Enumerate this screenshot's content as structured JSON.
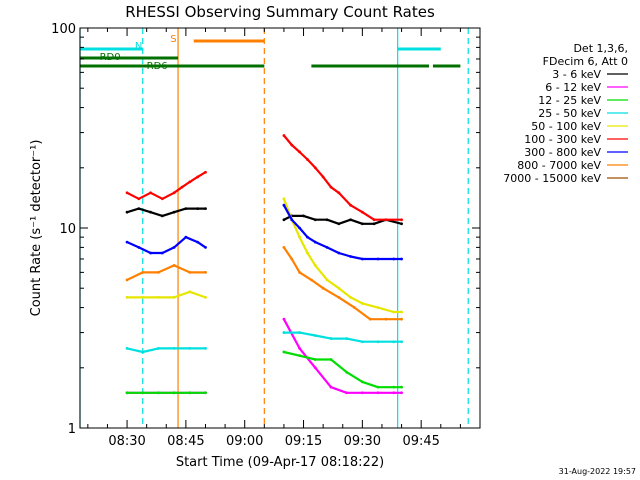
{
  "chart_data": {
    "type": "line",
    "title": "RHESSI Observing Summary Count Rates",
    "xlabel": "Start Time (09-Apr-17 08:18:22)",
    "ylabel": "Count Rate (s⁻¹ detector⁻¹)",
    "yscale": "log",
    "ylim": [
      1,
      100
    ],
    "xlim": [
      "08:18",
      "10:00"
    ],
    "x_ticks": [
      "08:30",
      "08:45",
      "09:00",
      "09:15",
      "09:30",
      "09:45"
    ],
    "y_ticks": [
      "1",
      "10",
      "100"
    ],
    "legend_header": [
      "Det 1,3,6,",
      "FDecim 6, Att 0"
    ],
    "legend_position": "top-right",
    "footer": "31-Aug-2022 19:57",
    "series": [
      {
        "name": "3 - 6 keV",
        "color": "#000000",
        "x": [
          "08:30",
          "08:33",
          "08:36",
          "08:39",
          "08:42",
          "08:45",
          "08:48",
          "08:50",
          "09:10",
          "09:12",
          "09:15",
          "09:18",
          "09:21",
          "09:24",
          "09:27",
          "09:30",
          "09:33",
          "09:36",
          "09:40"
        ],
        "y": [
          12,
          12.5,
          12,
          11.5,
          12,
          12.5,
          12.5,
          12.5,
          11,
          11.5,
          11.5,
          11,
          11,
          10.5,
          11,
          10.5,
          10.5,
          11,
          10.5
        ]
      },
      {
        "name": "6 - 12 keV",
        "color": "#ff00ff",
        "x": [
          "08:30",
          "08:34",
          "08:38",
          "08:42",
          "08:46",
          "08:50",
          "09:10",
          "09:14",
          "09:18",
          "09:22",
          "09:26",
          "09:30",
          "09:34",
          "09:38",
          "09:40"
        ],
        "y": [
          1.5,
          1.5,
          1.5,
          1.5,
          1.5,
          1.5,
          3.5,
          2.5,
          2.0,
          1.6,
          1.5,
          1.5,
          1.5,
          1.5,
          1.5
        ]
      },
      {
        "name": "12 - 25 keV",
        "color": "#00dd00",
        "x": [
          "08:30",
          "08:34",
          "08:38",
          "08:42",
          "08:46",
          "08:50",
          "09:10",
          "09:14",
          "09:18",
          "09:22",
          "09:26",
          "09:30",
          "09:34",
          "09:38",
          "09:40"
        ],
        "y": [
          1.5,
          1.5,
          1.5,
          1.5,
          1.5,
          1.5,
          2.4,
          2.3,
          2.2,
          2.2,
          1.9,
          1.7,
          1.6,
          1.6,
          1.6
        ]
      },
      {
        "name": "25 - 50 keV",
        "color": "#00e0e0",
        "x": [
          "08:30",
          "08:34",
          "08:38",
          "08:42",
          "08:46",
          "08:50",
          "09:10",
          "09:14",
          "09:18",
          "09:22",
          "09:26",
          "09:30",
          "09:34",
          "09:38",
          "09:40"
        ],
        "y": [
          2.5,
          2.4,
          2.5,
          2.5,
          2.5,
          2.5,
          3.0,
          3.0,
          2.9,
          2.8,
          2.8,
          2.7,
          2.7,
          2.7,
          2.7
        ]
      },
      {
        "name": "50 - 100 keV",
        "color": "#e6e600",
        "x": [
          "08:30",
          "08:34",
          "08:38",
          "08:42",
          "08:46",
          "08:50",
          "09:10",
          "09:12",
          "09:14",
          "09:16",
          "09:18",
          "09:21",
          "09:24",
          "09:27",
          "09:30",
          "09:34",
          "09:38",
          "09:40"
        ],
        "y": [
          4.5,
          4.5,
          4.5,
          4.5,
          4.8,
          4.5,
          14,
          11,
          9,
          7.5,
          6.5,
          5.5,
          5.0,
          4.5,
          4.2,
          4.0,
          3.8,
          3.8
        ]
      },
      {
        "name": "100 - 300 keV",
        "color": "#ff0000",
        "x": [
          "08:30",
          "08:33",
          "08:36",
          "08:39",
          "08:42",
          "08:44",
          "08:46",
          "08:48",
          "08:50",
          "09:10",
          "09:12",
          "09:14",
          "09:16",
          "09:18",
          "09:20",
          "09:22",
          "09:24",
          "09:27",
          "09:30",
          "09:33",
          "09:36",
          "09:40"
        ],
        "y": [
          15,
          14,
          15,
          14,
          15,
          16,
          17,
          18,
          19,
          29,
          26,
          24,
          22,
          20,
          18,
          16,
          15,
          13,
          12,
          11,
          11,
          11
        ]
      },
      {
        "name": "300 - 800 keV",
        "color": "#0000ff",
        "x": [
          "08:30",
          "08:33",
          "08:36",
          "08:39",
          "08:42",
          "08:45",
          "08:48",
          "08:50",
          "09:10",
          "09:12",
          "09:14",
          "09:16",
          "09:18",
          "09:21",
          "09:24",
          "09:27",
          "09:30",
          "09:34",
          "09:38",
          "09:40"
        ],
        "y": [
          8.5,
          8,
          7.5,
          7.5,
          8,
          9,
          8.5,
          8,
          13,
          11,
          10,
          9,
          8.5,
          8,
          7.5,
          7.2,
          7,
          7,
          7,
          7
        ]
      },
      {
        "name": "800 - 7000 keV",
        "color": "#ff8000",
        "x": [
          "08:30",
          "08:34",
          "08:38",
          "08:42",
          "08:46",
          "08:50",
          "09:10",
          "09:12",
          "09:14",
          "09:17",
          "09:20",
          "09:24",
          "09:28",
          "09:32",
          "09:36",
          "09:40"
        ],
        "y": [
          5.5,
          6,
          6,
          6.5,
          6,
          6,
          8,
          7,
          6,
          5.5,
          5,
          4.5,
          4,
          3.5,
          3.5,
          3.5
        ]
      },
      {
        "name": "7000 - 15000 keV",
        "color": "#a05000",
        "x": [],
        "y": []
      }
    ],
    "state_bars": [
      {
        "label": "N",
        "color": "#00e0e0",
        "level": 1,
        "segments": [
          [
            "08:18",
            "08:34"
          ],
          [
            "09:39",
            "09:50"
          ]
        ]
      },
      {
        "label": "S",
        "color": "#ff8000",
        "level": 2,
        "segments": [
          [
            "08:47",
            "09:05"
          ]
        ]
      },
      {
        "label": "RD0",
        "color": "#007000",
        "level": 3,
        "segments": [
          [
            "08:18",
            "08:43"
          ]
        ]
      },
      {
        "label": "RD6",
        "color": "#007000",
        "level": 4,
        "segments": [
          [
            "08:18",
            "09:05"
          ],
          [
            "09:17",
            "09:47"
          ],
          [
            "09:48",
            "09:55"
          ]
        ]
      }
    ],
    "vertical_lines": [
      {
        "x": "08:18",
        "color": "#00e0e0",
        "style": "solid"
      },
      {
        "x": "08:34",
        "color": "#00e0e0",
        "style": "dashed"
      },
      {
        "x": "08:43",
        "color": "#ff8000",
        "style": "solid"
      },
      {
        "x": "09:05",
        "color": "#ff8000",
        "style": "dashed"
      },
      {
        "x": "09:39",
        "color": "#00e0e0",
        "style": "solid"
      },
      {
        "x": "09:57",
        "color": "#00e0e0",
        "style": "dashed"
      }
    ]
  }
}
